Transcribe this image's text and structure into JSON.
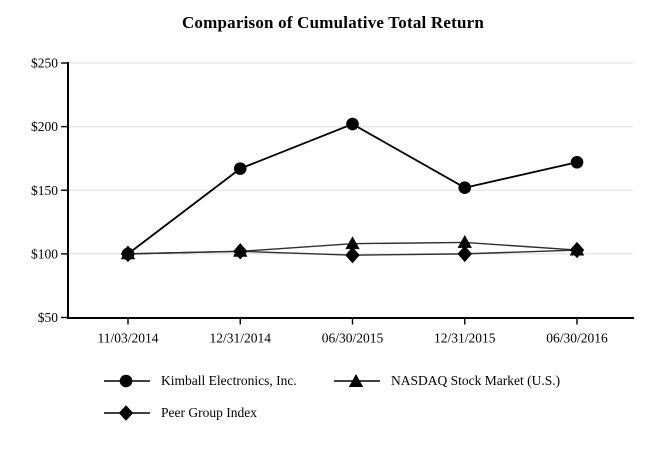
{
  "chart_data": {
    "type": "line",
    "title": "Comparison of Cumulative Total Return",
    "x": [
      "11/03/2014",
      "12/31/2014",
      "06/30/2015",
      "12/31/2015",
      "06/30/2016"
    ],
    "series": [
      {
        "name": "Kimball Electronics, Inc.",
        "marker": "circle",
        "color": "#000000",
        "line_width": 1.8,
        "values": [
          100,
          167,
          202,
          152,
          172
        ]
      },
      {
        "name": "NASDAQ Stock Market (U.S.)",
        "marker": "triangle",
        "color": "#2f2f2f",
        "line_width": 1.4,
        "values": [
          100,
          102,
          108,
          109,
          103
        ]
      },
      {
        "name": "Peer Group Index",
        "marker": "diamond",
        "color": "#2f2f2f",
        "line_width": 1.4,
        "values": [
          100,
          102,
          99,
          100,
          103
        ]
      }
    ],
    "xlabel": "",
    "ylabel": "",
    "ylim": [
      50,
      250
    ],
    "ytick_values": [
      50,
      100,
      150,
      200,
      250
    ],
    "ytick_labels": [
      "$50",
      "$100",
      "$150",
      "$200",
      "$250"
    ],
    "grid": "horizontal-light",
    "legend_position": "bottom",
    "colors": {
      "axis": "#000000",
      "grid": "#e4e4e4",
      "text": "#000000",
      "background": "#ffffff"
    }
  }
}
